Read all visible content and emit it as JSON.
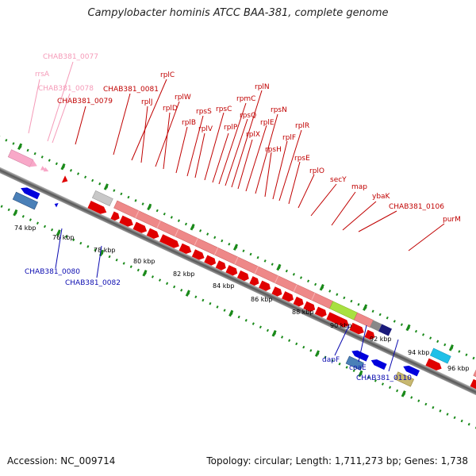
{
  "title": "Campylobacter hominis ATCC BAA-381, complete genome",
  "footer": {
    "accession": "Accession: NC_009714",
    "summary": "Topology: circular; Length: 1,711,273 bp; Genes: 1,738"
  },
  "kbp_ticks": [
    "74 kbp",
    "76 kbp",
    "78 kbp",
    "80 kbp",
    "82 kbp",
    "84 kbp",
    "86 kbp",
    "88 kbp",
    "90 kbp",
    "92 kbp",
    "94 kbp",
    "96 kbp"
  ],
  "labels": {
    "chab0077": "CHAB381_0077",
    "rrsa": "rrsA",
    "chab0078": "CHAB381_0078",
    "chab0079": "CHAB381_0079",
    "chab0081": "CHAB381_0081",
    "rplc": "rplC",
    "rplj": "rplJ",
    "rplw": "rplW",
    "rpld": "rplD",
    "rpls_b": "rplB",
    "rpss": "rpsS",
    "rplv": "rplV",
    "rpsc": "rpsC",
    "rplp": "rplP",
    "rpmc": "rpmC",
    "rpsq": "rpsQ",
    "rpln": "rplN",
    "rplx": "rplX",
    "rple": "rplE",
    "rpsn": "rpsN",
    "rpsh": "rpsH",
    "rplf": "rplF",
    "rplr": "rplR",
    "rpse": "rpsE",
    "rplo": "rplO",
    "secy": "secY",
    "map": "map",
    "ybak": "ybaK",
    "chab0106": "CHAB381_0106",
    "purm": "purM",
    "chab0080": "CHAB381_0080",
    "chab0082": "CHAB381_0082",
    "dapf": "dapF",
    "coae": "coaE",
    "chab0110": "CHAB381_0110"
  },
  "colors": {
    "forward_gene": "#e00000",
    "reverse_gene": "#0000dd",
    "rrna": "#f8a8c8",
    "ribosomal_block": "#ee8888",
    "backbone": "#888888",
    "tick": "#1a8a1a"
  }
}
